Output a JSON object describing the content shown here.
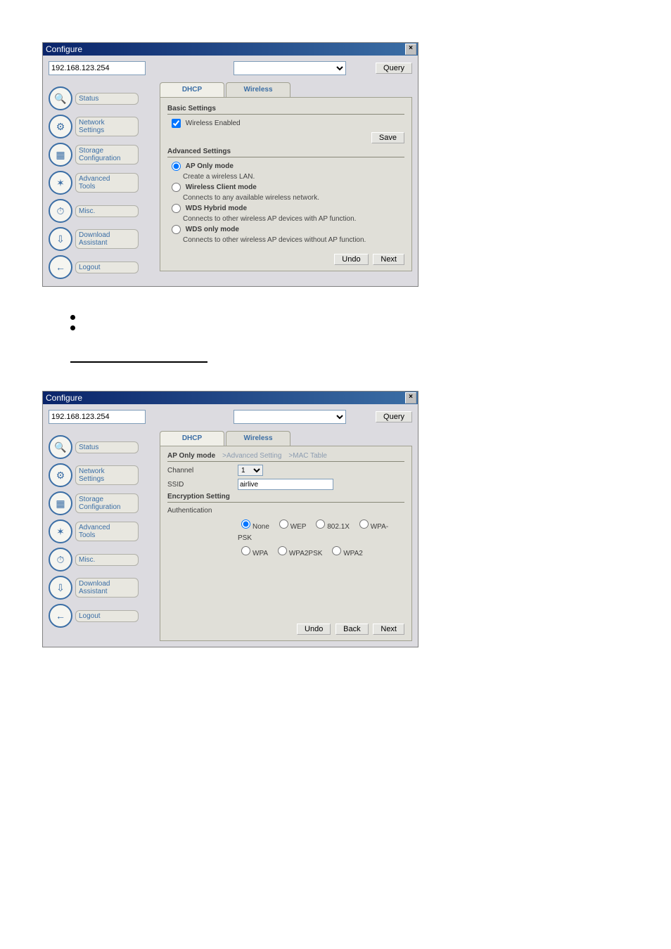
{
  "window": {
    "title": "Configure",
    "close": "×"
  },
  "top": {
    "ip": "192.168.123.254",
    "query": "Query"
  },
  "sidebar": {
    "items": [
      {
        "label": "Status",
        "glyph": "🔍"
      },
      {
        "label": "Network\nSettings",
        "glyph": "⚙"
      },
      {
        "label": "Storage\nConfiguration",
        "glyph": "▦"
      },
      {
        "label": "Advanced\nTools",
        "glyph": "✶"
      },
      {
        "label": "Misc.",
        "glyph": "⏱"
      },
      {
        "label": "Download\nAssistant",
        "glyph": "⇩"
      },
      {
        "label": "Logout",
        "glyph": "←"
      }
    ]
  },
  "tabs": {
    "dhcp": "DHCP",
    "wireless": "Wireless"
  },
  "panel1": {
    "basic_title": "Basic Settings",
    "wireless_enabled": "Wireless Enabled",
    "save": "Save",
    "adv_title": "Advanced Settings",
    "modes": [
      {
        "name": "AP Only mode",
        "desc": "Create a wireless LAN.",
        "checked": true
      },
      {
        "name": "Wireless Client mode",
        "desc": "Connects to any available wireless network.",
        "checked": false
      },
      {
        "name": "WDS Hybrid mode",
        "desc": "Connects to other wireless AP devices with AP function.",
        "checked": false
      },
      {
        "name": "WDS only mode",
        "desc": "Connects to other wireless AP devices without AP function.",
        "checked": false
      }
    ],
    "undo": "Undo",
    "next": "Next"
  },
  "intertext": {
    "bullet1": "",
    "bullet2": ""
  },
  "panel2": {
    "mode_title": "AP Only mode",
    "faded1": ">Advanced Setting",
    "faded2": ">MAC Table",
    "channel_label": "Channel",
    "channel_value": "1",
    "ssid_label": "SSID",
    "ssid_value": "airlive",
    "enc_title": "Encryption Setting",
    "auth_label": "Authentication",
    "auth_opts": [
      "None",
      "WEP",
      "802.1X",
      "WPA-PSK",
      "WPA",
      "WPA2PSK",
      "WPA2"
    ],
    "auth_selected": "None",
    "undo": "Undo",
    "back": "Back",
    "next": "Next"
  },
  "colors": {
    "titlebar_start": "#0a246a",
    "titlebar_end": "#3b6ea5",
    "window_bg": "#dcdbe0",
    "panel_bg": "#e0dfd8",
    "tab_bg": "#f0efe8",
    "link": "#3b6ea5",
    "border": "#a0a090"
  }
}
